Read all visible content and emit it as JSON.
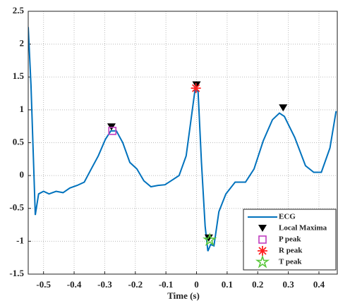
{
  "chart_data": {
    "type": "line",
    "xlabel": "Time (s)",
    "xlim": [
      -0.55,
      0.46
    ],
    "ylim": [
      -1.5,
      2.5
    ],
    "xticks": [
      -0.5,
      -0.4,
      -0.3,
      -0.2,
      -0.1,
      0,
      0.1,
      0.2,
      0.3,
      0.4
    ],
    "yticks": [
      -1.5,
      -1,
      -0.5,
      0,
      0.5,
      1,
      1.5,
      2,
      2.5
    ],
    "grid": true,
    "legend": "lower right",
    "series": [
      {
        "name": "ECG",
        "color": "#0072bd",
        "marker": "line",
        "x": [
          -0.55,
          -0.541,
          -0.527,
          -0.516,
          -0.5,
          -0.482,
          -0.459,
          -0.436,
          -0.414,
          -0.39,
          -0.367,
          -0.344,
          -0.321,
          -0.298,
          -0.28,
          -0.262,
          -0.241,
          -0.218,
          -0.195,
          -0.172,
          -0.149,
          -0.126,
          -0.103,
          -0.08,
          -0.057,
          -0.034,
          -0.018,
          -0.005,
          0.005,
          0.016,
          0.028,
          0.037,
          0.046,
          0.057,
          0.073,
          0.096,
          0.126,
          0.16,
          0.188,
          0.218,
          0.248,
          0.271,
          0.287,
          0.321,
          0.356,
          0.383,
          0.408,
          0.436,
          0.456
        ],
        "values": [
          2.26,
          1.38,
          -0.6,
          -0.28,
          -0.24,
          -0.28,
          -0.24,
          -0.26,
          -0.19,
          -0.15,
          -0.1,
          0.1,
          0.3,
          0.55,
          0.68,
          0.68,
          0.5,
          0.2,
          0.1,
          -0.08,
          -0.17,
          -0.15,
          -0.14,
          -0.07,
          0,
          0.3,
          0.85,
          1.3,
          1.28,
          0.2,
          -0.77,
          -1.15,
          -1.05,
          -1.07,
          -0.55,
          -0.28,
          -0.1,
          -0.1,
          0.1,
          0.53,
          0.85,
          0.95,
          0.9,
          0.58,
          0.15,
          0.05,
          0.05,
          0.42,
          0.98
        ]
      },
      {
        "name": "Local Maxima",
        "color": "#000000",
        "marker": "triangle",
        "x": [
          -0.278,
          0,
          0.04,
          0.283
        ],
        "values": [
          0.74,
          1.38,
          -0.95,
          1.03
        ]
      },
      {
        "name": "P peak",
        "color": "#c03cc0",
        "marker": "square",
        "x": [
          -0.275
        ],
        "values": [
          0.68
        ]
      },
      {
        "name": "R peak",
        "color": "#ff2020",
        "marker": "asterisk",
        "x": [
          -0.002
        ],
        "values": [
          1.33
        ]
      },
      {
        "name": "T peak",
        "color": "#5ac83c",
        "marker": "pentagram",
        "x": [
          0.043
        ],
        "values": [
          -0.98
        ]
      }
    ]
  }
}
